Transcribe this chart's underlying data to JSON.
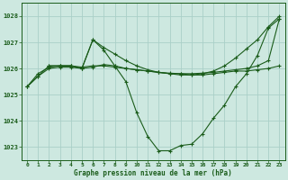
{
  "bg_color": "#cde8e0",
  "grid_color": "#aacfc8",
  "line_color": "#1a5c1a",
  "xlabel": "Graphe pression niveau de la mer (hPa)",
  "xlabel_color": "#1a5c1a",
  "tick_color": "#1a5c1a",
  "xlim": [
    -0.5,
    23.5
  ],
  "ylim": [
    1022.5,
    1028.5
  ],
  "yticks": [
    1023,
    1024,
    1025,
    1026,
    1027,
    1028
  ],
  "xticks": [
    0,
    1,
    2,
    3,
    4,
    5,
    6,
    7,
    8,
    9,
    10,
    11,
    12,
    13,
    14,
    15,
    16,
    17,
    18,
    19,
    20,
    21,
    22,
    23
  ],
  "series": [
    {
      "x": [
        0,
        1,
        2,
        3,
        4,
        5,
        6,
        7,
        8,
        9,
        10,
        11,
        12,
        13,
        14,
        15,
        16,
        17,
        18,
        19,
        20,
        21,
        22,
        23
      ],
      "y": [
        1025.3,
        1025.7,
        1026.1,
        1026.1,
        1026.1,
        1026.0,
        1027.1,
        1026.7,
        1026.1,
        1025.5,
        1024.3,
        1023.4,
        1022.85,
        1022.85,
        1023.05,
        1023.1,
        1023.5,
        1024.1,
        1024.6,
        1025.3,
        1025.8,
        1026.5,
        1027.55,
        1027.9
      ]
    },
    {
      "x": [
        2,
        3,
        4,
        5,
        6,
        7,
        8,
        9,
        10,
        11,
        12,
        13,
        14,
        15,
        16,
        17,
        18,
        19,
        20,
        21,
        22,
        23
      ],
      "y": [
        1026.1,
        1026.1,
        1026.1,
        1026.0,
        1027.1,
        1026.8,
        1026.55,
        1026.3,
        1026.1,
        1025.95,
        1025.85,
        1025.8,
        1025.75,
        1025.75,
        1025.8,
        1025.9,
        1026.1,
        1026.4,
        1026.75,
        1027.1,
        1027.6,
        1028.0
      ]
    },
    {
      "x": [
        0,
        1,
        2,
        3,
        4,
        5,
        6,
        7,
        8,
        9,
        10,
        11,
        12,
        13,
        14,
        15,
        16,
        17,
        18,
        19,
        20,
        21,
        22,
        23
      ],
      "y": [
        1025.3,
        1025.8,
        1026.05,
        1026.1,
        1026.1,
        1026.05,
        1026.1,
        1026.1,
        1026.05,
        1026.0,
        1025.95,
        1025.9,
        1025.85,
        1025.8,
        1025.8,
        1025.75,
        1025.75,
        1025.8,
        1025.85,
        1025.9,
        1025.9,
        1025.95,
        1026.0,
        1026.1
      ]
    },
    {
      "x": [
        0,
        1,
        2,
        3,
        4,
        5,
        6,
        7,
        8,
        9,
        10,
        11,
        12,
        13,
        14,
        15,
        16,
        17,
        18,
        19,
        20,
        21,
        22,
        23
      ],
      "y": [
        1025.3,
        1025.7,
        1026.0,
        1026.05,
        1026.05,
        1026.0,
        1026.05,
        1026.15,
        1026.1,
        1026.0,
        1025.95,
        1025.9,
        1025.85,
        1025.82,
        1025.8,
        1025.8,
        1025.82,
        1025.85,
        1025.9,
        1025.95,
        1026.0,
        1026.1,
        1026.3,
        1027.9
      ]
    }
  ]
}
